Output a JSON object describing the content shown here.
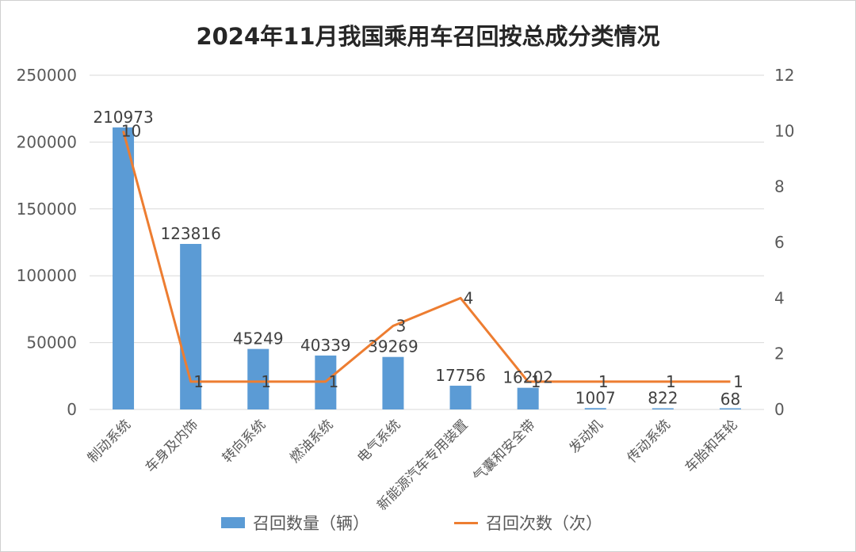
{
  "chart_data": {
    "type": "bar+line",
    "title": "2024年11月我国乘用车召回按总成分类情况",
    "categories": [
      "制动系统",
      "车身及内饰",
      "转向系统",
      "燃油系统",
      "电气系统",
      "新能源汽车专用装置",
      "气囊和安全带",
      "发动机",
      "传动系统",
      "车胎和车轮"
    ],
    "series": [
      {
        "name": "召回数量（辆）",
        "type": "bar",
        "axis": "left",
        "values": [
          210973,
          123816,
          45249,
          40339,
          39269,
          17756,
          16202,
          1007,
          822,
          68
        ]
      },
      {
        "name": "召回次数（次）",
        "type": "line",
        "axis": "right",
        "values": [
          10,
          1,
          1,
          1,
          3,
          4,
          1,
          1,
          1,
          1
        ]
      }
    ],
    "y_left": {
      "min": 0,
      "max": 250000,
      "ticks": [
        "0",
        "50000",
        "100000",
        "150000",
        "200000",
        "250000"
      ]
    },
    "y_right": {
      "min": 0,
      "max": 12,
      "ticks": [
        "0",
        "2",
        "4",
        "6",
        "8",
        "10",
        "12"
      ]
    },
    "grid": true,
    "legend_position": "bottom",
    "colors": {
      "bar": "#5b9bd5",
      "line": "#ed7d31",
      "grid": "#d9d9d9",
      "text": "#595959"
    }
  }
}
